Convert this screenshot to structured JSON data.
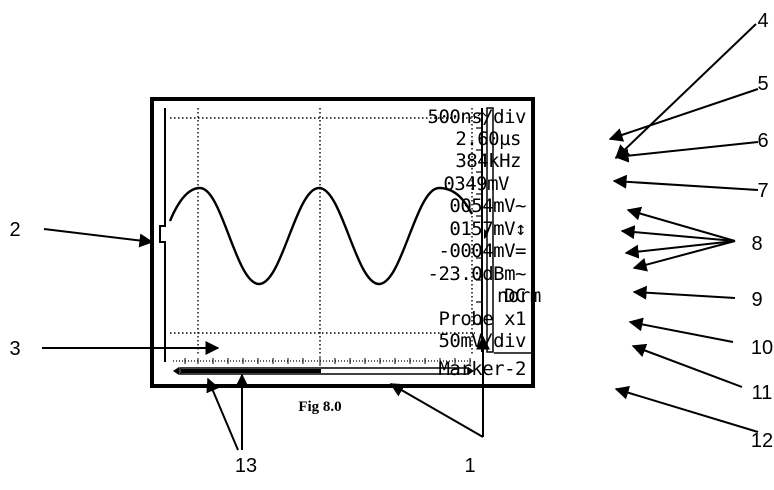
{
  "caption": "Fig 8.0",
  "display": {
    "readouts": [
      "500ns/div",
      "2.60µs",
      "384kHz",
      "0349mV",
      "0054mV~",
      "0157mV↕",
      "-0004mV=",
      "-23.0dBm~",
      "norm",
      "DC",
      "Probe x1",
      "50mV/div",
      "Marker-2"
    ]
  },
  "callouts": [
    "1",
    "2",
    "3",
    "4",
    "5",
    "6",
    "7",
    "8",
    "9",
    "10",
    "11",
    "12",
    "13"
  ]
}
